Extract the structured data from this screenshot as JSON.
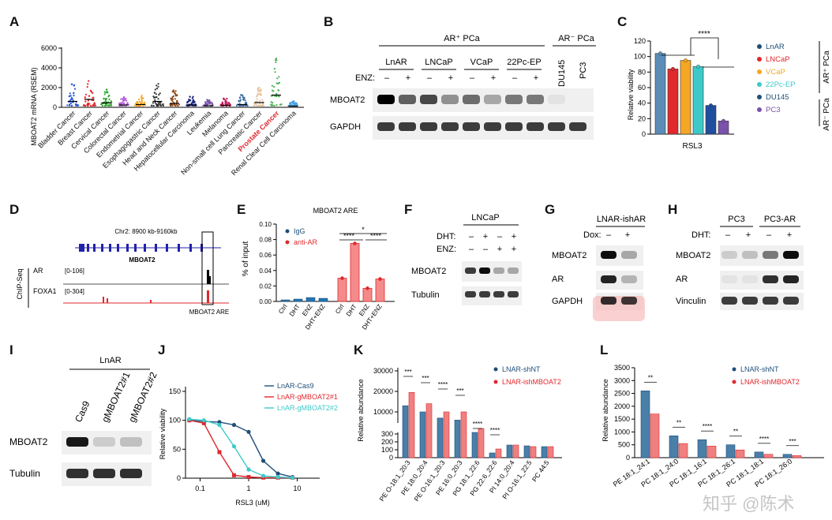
{
  "panel_letters": [
    "A",
    "B",
    "C",
    "D",
    "E",
    "F",
    "G",
    "H",
    "I",
    "J",
    "K",
    "L"
  ],
  "colors": {
    "red": "#e0282d",
    "blue": "#1f4e79",
    "cyan": "#3ec9c9",
    "orange": "#f5a623",
    "purple": "#7b52ab",
    "green": "#4caf50"
  },
  "panelA": {
    "ylabel": "MBOAT2 mRNA (RSEM)",
    "yticks": [
      "0",
      "2000",
      "4000",
      "6000"
    ],
    "cancers": [
      "Bladder Cancer",
      "Breast Cancer",
      "Cervical Cancer",
      "Colorectal Cancer",
      "Endometrial Cancer",
      "Esophagogastric Cancer",
      "Head and Neck Cancer",
      "Hepatocellular Carcinoma",
      "Leukemia",
      "Melanoma",
      "Non-small cell Lung Cancer",
      "Pancreatic Cancer",
      "Prostate Cancer",
      "Renal Clear Cell Carcinoma"
    ],
    "highlight": "Prostate Cancer"
  },
  "panelB": {
    "group1": "AR⁺ PCa",
    "group2": "AR⁻ PCa",
    "lines": [
      "LnAR",
      "LNCaP",
      "VCaP",
      "22Pc-EP"
    ],
    "lines2": [
      "DU145",
      "PC3"
    ],
    "enz_label": "ENZ:",
    "enz_signs": [
      "–",
      "+",
      "–",
      "+",
      "–",
      "+",
      "–",
      "+"
    ],
    "rows": [
      "MBOAT2",
      "GAPDH"
    ]
  },
  "panelC": {
    "ylabel": "Relative viability",
    "yticks": [
      "0",
      "20",
      "40",
      "60",
      "80",
      "100",
      "120"
    ],
    "xlabel": "RSL3",
    "sig": "****",
    "legend": [
      "LnAR",
      "LNCaP",
      "VCaP",
      "22Pc-EP",
      "DU145",
      "PC3"
    ],
    "values": [
      104,
      84,
      95,
      87,
      37,
      17
    ],
    "group_pos": "AR⁺ PCa",
    "group_neg": "AR⁻ PCa"
  },
  "panelD": {
    "coord": "Chr2: 8900 kb-9160kb",
    "gene": "MBOAT2",
    "side": "ChIP-Seq",
    "tracks": [
      "AR",
      "FOXA1"
    ],
    "ranges": [
      "[0-106]",
      "[0-304]"
    ],
    "region": "MBOAT2 ARE"
  },
  "panelE": {
    "title": "MBOAT2 ARE",
    "ylabel": "% of input",
    "yticks": [
      "0.00",
      "0.02",
      "0.04",
      "0.06",
      "0.08",
      "0.10"
    ],
    "legend": [
      "IgG",
      "anti-AR"
    ],
    "conditions": [
      "Ctrl",
      "DHT",
      "ENZ",
      "DHT+ENZ",
      "Ctrl",
      "DHT",
      "ENZ",
      "DHT+ENZ"
    ],
    "igg": [
      0.002,
      0.003,
      0.005,
      0.004
    ],
    "antiAR": [
      0.03,
      0.075,
      0.017,
      0.029
    ],
    "sig": [
      "*",
      "****",
      "****"
    ]
  },
  "panelF": {
    "cell": "LNCaP",
    "dht": "DHT:",
    "enz": "ENZ:",
    "dht_signs": [
      "–",
      "+",
      "–",
      "+"
    ],
    "enz_signs": [
      "–",
      "–",
      "+",
      "+"
    ],
    "rows": [
      "MBOAT2",
      "Tubulin"
    ]
  },
  "panelG": {
    "cell": "LNAR-ishAR",
    "dox": "Dox:",
    "signs": [
      "–",
      "+"
    ],
    "rows": [
      "MBOAT2",
      "AR",
      "GAPDH"
    ]
  },
  "panelH": {
    "cells": [
      "PC3",
      "PC3-AR"
    ],
    "dht": "DHT:",
    "signs": [
      "–",
      "+",
      "–",
      "+"
    ],
    "rows": [
      "MBOAT2",
      "AR",
      "Vinculin"
    ]
  },
  "panelI": {
    "cell": "LnAR",
    "lanes": [
      "Cas9",
      "gMBOAT2#1",
      "gMBOAT2#2"
    ],
    "rows": [
      "MBOAT2",
      "Tubulin"
    ]
  },
  "panelJ": {
    "ylabel": "Relative viability",
    "xlabel": "RSL3 (uM)",
    "yticks": [
      "0",
      "50",
      "100",
      "150"
    ],
    "xticks": [
      "0.1",
      "1",
      "10"
    ],
    "legend": [
      "LnAR-Cas9",
      "LnAR-gMBOAT2#1",
      "LnAR-gMBOAT2#2"
    ]
  },
  "panelK": {
    "ylabel": "Relative abundance",
    "yticks_top": [
      "10000",
      "20000",
      "30000"
    ],
    "yticks_bottom": [
      "0",
      "100",
      "200",
      "300"
    ],
    "legend": [
      "LNAR-shNT",
      "LNAR-ishMBOAT2"
    ],
    "lipids": [
      "PE O-18:1_20:3",
      "PE 18:0_20:4",
      "PE O-16:1_20:3",
      "PE 16:0_20:3",
      "PG 18:1_22:6",
      "PG 22:6_22:6",
      "PI 14:0_20:4",
      "PI O-16:1_22:5",
      "PC 44:5"
    ],
    "sig": [
      "***",
      "***",
      "****",
      "***",
      "****",
      "****"
    ]
  },
  "panelL": {
    "ylabel": "Relative abundance",
    "yticks": [
      "0",
      "500",
      "1000",
      "1500",
      "2000",
      "2500",
      "3000",
      "3500"
    ],
    "legend": [
      "LNAR-shNT",
      "LNAR-ishMBOAT2"
    ],
    "lipids": [
      "PE 18:1_24:1",
      "PC 18:1_24:0",
      "PC 18:1_16:1",
      "PC 18:1_26:1",
      "PC 18:1_18:1",
      "PC 18:1_26:0"
    ],
    "sig": [
      "**",
      "**",
      "****",
      "**",
      "****",
      "***"
    ],
    "watermark": "知乎 @陈术"
  },
  "chart_data": [
    {
      "type": "bar",
      "title": "C",
      "categories": [
        "LnAR",
        "LNCaP",
        "VCaP",
        "22Pc-EP",
        "DU145",
        "PC3"
      ],
      "values": [
        104,
        84,
        95,
        87,
        37,
        17
      ],
      "ylabel": "Relative viability",
      "ylim": [
        0,
        120
      ]
    },
    {
      "type": "bar",
      "title": "MBOAT2 ARE",
      "categories": [
        "Ctrl",
        "DHT",
        "ENZ",
        "DHT+ENZ"
      ],
      "series": [
        {
          "name": "IgG",
          "values": [
            0.002,
            0.003,
            0.005,
            0.004
          ]
        },
        {
          "name": "anti-AR",
          "values": [
            0.03,
            0.075,
            0.017,
            0.029
          ]
        }
      ],
      "ylabel": "% of input",
      "ylim": [
        0,
        0.1
      ]
    },
    {
      "type": "line",
      "title": "J",
      "xlabel": "RSL3 (uM)",
      "ylabel": "Relative viability",
      "series": [
        {
          "name": "LnAR-Cas9",
          "x": [
            0.06,
            0.12,
            0.25,
            0.5,
            1,
            2,
            4,
            8
          ],
          "values": [
            100,
            98,
            97,
            92,
            80,
            30,
            8,
            2
          ]
        },
        {
          "name": "LnAR-gMBOAT2#1",
          "x": [
            0.06,
            0.12,
            0.25,
            0.5,
            1,
            2,
            4,
            8
          ],
          "values": [
            100,
            95,
            45,
            5,
            2,
            1,
            1,
            1
          ]
        },
        {
          "name": "LnAR-gMBOAT2#2",
          "x": [
            0.06,
            0.12,
            0.25,
            0.5,
            1,
            2,
            4,
            8
          ],
          "values": [
            102,
            100,
            92,
            55,
            15,
            4,
            2,
            1
          ]
        }
      ],
      "ylim": [
        0,
        150
      ]
    },
    {
      "type": "bar",
      "title": "K",
      "categories": [
        "PE O-18:1_20:3",
        "PE 18:0_20:4",
        "PE O-16:1_20:3",
        "PE 16:0_20:3",
        "PG 18:1_22:6",
        "PG 22:6_22:6",
        "PI 14:0_20:4",
        "PI O-16:1_22:5",
        "PC 44:5"
      ],
      "series": [
        {
          "name": "LNAR-shNT",
          "values": [
            13000,
            10000,
            7000,
            6000,
            320,
            60,
            160,
            150,
            140
          ]
        },
        {
          "name": "LNAR-ishMBOAT2",
          "values": [
            19500,
            14000,
            10000,
            10000,
            370,
            110,
            160,
            140,
            140
          ]
        }
      ],
      "ylabel": "Relative abundance"
    },
    {
      "type": "bar",
      "title": "L",
      "categories": [
        "PE 18:1_24:1",
        "PC 18:1_24:0",
        "PC 18:1_16:1",
        "PC 18:1_26:1",
        "PC 18:1_18:1",
        "PC 18:1_26:0"
      ],
      "series": [
        {
          "name": "LNAR-shNT",
          "values": [
            2600,
            850,
            700,
            500,
            220,
            130
          ]
        },
        {
          "name": "LNAR-ishMBOAT2",
          "values": [
            1700,
            550,
            450,
            300,
            130,
            80
          ]
        }
      ],
      "ylabel": "Relative abundance",
      "ylim": [
        0,
        3500
      ]
    }
  ]
}
